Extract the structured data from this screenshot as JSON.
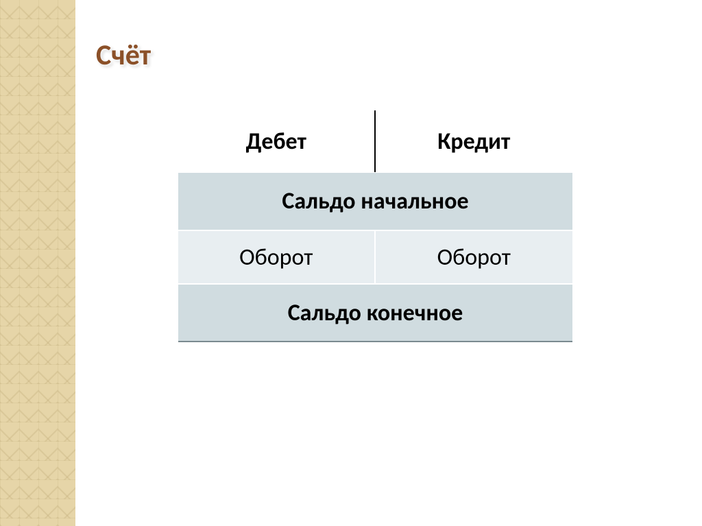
{
  "slide": {
    "title": "Счёт",
    "table": {
      "headers": {
        "left": "Дебет",
        "right": "Кредит"
      },
      "rows": {
        "saldo_start": "Сальдо начальное",
        "oborot_left": "Оборот",
        "oborot_right": "Оборот",
        "saldo_end": "Сальдо конечное"
      },
      "colors": {
        "saldo_bg": "#d0dce0",
        "oborot_bg": "#e8eef1",
        "header_bg": "#ffffff",
        "divider": "#000000",
        "row_divider": "#ffffff"
      },
      "fontsize": {
        "title": 42,
        "cell": 34
      }
    },
    "sidebar": {
      "pattern_color": "#e6d5a8",
      "width": 110
    },
    "title_color": "#8b5028"
  }
}
